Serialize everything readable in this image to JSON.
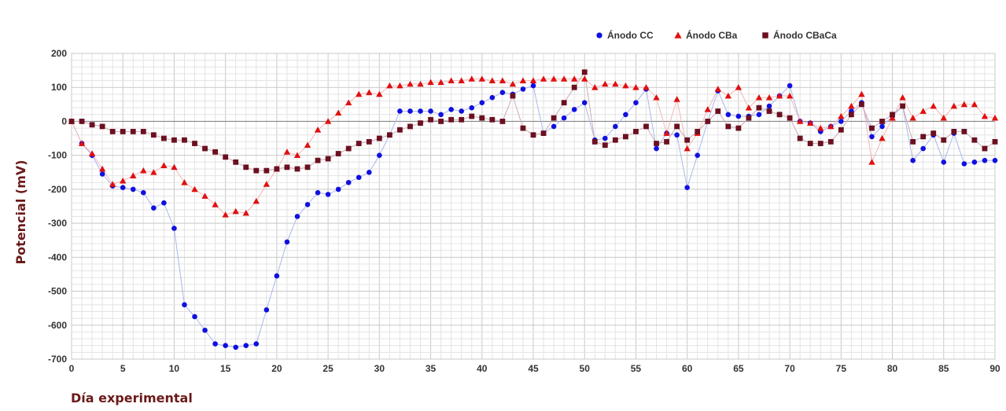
{
  "chart_data": {
    "type": "line",
    "xlabel": "Día experimental",
    "ylabel": "Potencial (mV)",
    "xlim": [
      0,
      90
    ],
    "ylim": [
      -700,
      200
    ],
    "x_ticks": [
      0,
      5,
      10,
      15,
      20,
      25,
      30,
      35,
      40,
      45,
      50,
      55,
      60,
      65,
      70,
      75,
      80,
      85,
      90
    ],
    "y_ticks": [
      200,
      100,
      0,
      -100,
      -200,
      -300,
      -400,
      -500,
      -600,
      -700
    ],
    "x_minor_step": 1,
    "y_minor_step": 20,
    "grid": true,
    "legend_position": "top-right",
    "series": [
      {
        "name": "Ánodo CC",
        "color": "#1010e0",
        "marker": "circle",
        "line_color": "#a9b6ee",
        "points": [
          [
            0,
            0
          ],
          [
            1,
            -65
          ],
          [
            2,
            -100
          ],
          [
            3,
            -155
          ],
          [
            4,
            -190
          ],
          [
            5,
            -195
          ],
          [
            6,
            -200
          ],
          [
            7,
            -210
          ],
          [
            8,
            -255
          ],
          [
            9,
            -240
          ],
          [
            10,
            -315
          ],
          [
            11,
            -540
          ],
          [
            12,
            -575
          ],
          [
            13,
            -615
          ],
          [
            14,
            -655
          ],
          [
            15,
            -660
          ],
          [
            16,
            -665
          ],
          [
            17,
            -660
          ],
          [
            18,
            -655
          ],
          [
            19,
            -555
          ],
          [
            20,
            -455
          ],
          [
            21,
            -355
          ],
          [
            22,
            -280
          ],
          [
            23,
            -245
          ],
          [
            24,
            -210
          ],
          [
            25,
            -215
          ],
          [
            26,
            -200
          ],
          [
            27,
            -180
          ],
          [
            28,
            -165
          ],
          [
            29,
            -150
          ],
          [
            30,
            -100
          ],
          [
            31,
            -40
          ],
          [
            32,
            30
          ],
          [
            33,
            30
          ],
          [
            34,
            30
          ],
          [
            35,
            30
          ],
          [
            36,
            20
          ],
          [
            37,
            35
          ],
          [
            38,
            30
          ],
          [
            39,
            40
          ],
          [
            40,
            55
          ],
          [
            41,
            70
          ],
          [
            42,
            85
          ],
          [
            43,
            80
          ],
          [
            44,
            95
          ],
          [
            45,
            105
          ],
          [
            46,
            -35
          ],
          [
            47,
            -15
          ],
          [
            48,
            10
          ],
          [
            49,
            35
          ],
          [
            50,
            55
          ],
          [
            51,
            -55
          ],
          [
            52,
            -50
          ],
          [
            53,
            -15
          ],
          [
            54,
            20
          ],
          [
            55,
            55
          ],
          [
            56,
            95
          ],
          [
            57,
            -80
          ],
          [
            58,
            -35
          ],
          [
            59,
            -40
          ],
          [
            60,
            -195
          ],
          [
            61,
            -100
          ],
          [
            62,
            0
          ],
          [
            63,
            90
          ],
          [
            64,
            20
          ],
          [
            65,
            15
          ],
          [
            66,
            15
          ],
          [
            67,
            20
          ],
          [
            68,
            45
          ],
          [
            69,
            75
          ],
          [
            70,
            105
          ],
          [
            71,
            0
          ],
          [
            72,
            -5
          ],
          [
            73,
            -30
          ],
          [
            74,
            -15
          ],
          [
            75,
            0
          ],
          [
            76,
            30
          ],
          [
            77,
            55
          ],
          [
            78,
            -45
          ],
          [
            79,
            -15
          ],
          [
            80,
            15
          ],
          [
            81,
            45
          ],
          [
            82,
            -115
          ],
          [
            83,
            -80
          ],
          [
            84,
            -40
          ],
          [
            85,
            -120
          ],
          [
            86,
            -35
          ],
          [
            87,
            -125
          ],
          [
            88,
            -120
          ],
          [
            89,
            -115
          ],
          [
            90,
            -115
          ]
        ]
      },
      {
        "name": "Ánodo CBa",
        "color": "#e01010",
        "marker": "triangle",
        "line_color": "#f2b5b5",
        "points": [
          [
            0,
            0
          ],
          [
            1,
            -65
          ],
          [
            2,
            -95
          ],
          [
            3,
            -140
          ],
          [
            4,
            -185
          ],
          [
            5,
            -175
          ],
          [
            6,
            -160
          ],
          [
            7,
            -145
          ],
          [
            8,
            -150
          ],
          [
            9,
            -130
          ],
          [
            10,
            -135
          ],
          [
            11,
            -180
          ],
          [
            12,
            -200
          ],
          [
            13,
            -220
          ],
          [
            14,
            -245
          ],
          [
            15,
            -275
          ],
          [
            16,
            -265
          ],
          [
            17,
            -270
          ],
          [
            18,
            -235
          ],
          [
            19,
            -185
          ],
          [
            20,
            -140
          ],
          [
            21,
            -90
          ],
          [
            22,
            -100
          ],
          [
            23,
            -70
          ],
          [
            24,
            -25
          ],
          [
            25,
            0
          ],
          [
            26,
            25
          ],
          [
            27,
            55
          ],
          [
            28,
            80
          ],
          [
            29,
            85
          ],
          [
            30,
            80
          ],
          [
            31,
            105
          ],
          [
            32,
            105
          ],
          [
            33,
            110
          ],
          [
            34,
            110
          ],
          [
            35,
            115
          ],
          [
            36,
            115
          ],
          [
            37,
            120
          ],
          [
            38,
            120
          ],
          [
            39,
            125
          ],
          [
            40,
            125
          ],
          [
            41,
            120
          ],
          [
            42,
            120
          ],
          [
            43,
            110
          ],
          [
            44,
            120
          ],
          [
            45,
            120
          ],
          [
            46,
            125
          ],
          [
            47,
            125
          ],
          [
            48,
            125
          ],
          [
            49,
            125
          ],
          [
            50,
            125
          ],
          [
            51,
            100
          ],
          [
            52,
            110
          ],
          [
            53,
            110
          ],
          [
            54,
            105
          ],
          [
            55,
            100
          ],
          [
            56,
            100
          ],
          [
            57,
            70
          ],
          [
            58,
            -35
          ],
          [
            59,
            65
          ],
          [
            60,
            -80
          ],
          [
            61,
            -35
          ],
          [
            62,
            35
          ],
          [
            63,
            95
          ],
          [
            64,
            75
          ],
          [
            65,
            100
          ],
          [
            66,
            40
          ],
          [
            67,
            70
          ],
          [
            68,
            70
          ],
          [
            69,
            75
          ],
          [
            70,
            75
          ],
          [
            71,
            0
          ],
          [
            72,
            -5
          ],
          [
            73,
            -20
          ],
          [
            74,
            -15
          ],
          [
            75,
            15
          ],
          [
            76,
            45
          ],
          [
            77,
            80
          ],
          [
            78,
            -120
          ],
          [
            79,
            -50
          ],
          [
            80,
            10
          ],
          [
            81,
            70
          ],
          [
            82,
            10
          ],
          [
            83,
            30
          ],
          [
            84,
            45
          ],
          [
            85,
            10
          ],
          [
            86,
            45
          ],
          [
            87,
            50
          ],
          [
            88,
            50
          ],
          [
            89,
            15
          ],
          [
            90,
            10
          ]
        ]
      },
      {
        "name": "Ánodo CBaCa",
        "color": "#6b1020",
        "marker": "square",
        "line_color": "#c9aab3",
        "points": [
          [
            0,
            0
          ],
          [
            1,
            0
          ],
          [
            2,
            -10
          ],
          [
            3,
            -15
          ],
          [
            4,
            -30
          ],
          [
            5,
            -30
          ],
          [
            6,
            -30
          ],
          [
            7,
            -30
          ],
          [
            8,
            -40
          ],
          [
            9,
            -50
          ],
          [
            10,
            -55
          ],
          [
            11,
            -55
          ],
          [
            12,
            -65
          ],
          [
            13,
            -80
          ],
          [
            14,
            -90
          ],
          [
            15,
            -105
          ],
          [
            16,
            -120
          ],
          [
            17,
            -135
          ],
          [
            18,
            -145
          ],
          [
            19,
            -145
          ],
          [
            20,
            -140
          ],
          [
            21,
            -135
          ],
          [
            22,
            -140
          ],
          [
            23,
            -135
          ],
          [
            24,
            -115
          ],
          [
            25,
            -110
          ],
          [
            26,
            -95
          ],
          [
            27,
            -80
          ],
          [
            28,
            -65
          ],
          [
            29,
            -60
          ],
          [
            30,
            -50
          ],
          [
            31,
            -40
          ],
          [
            32,
            -25
          ],
          [
            33,
            -15
          ],
          [
            34,
            -5
          ],
          [
            35,
            5
          ],
          [
            36,
            0
          ],
          [
            37,
            5
          ],
          [
            38,
            5
          ],
          [
            39,
            15
          ],
          [
            40,
            10
          ],
          [
            41,
            5
          ],
          [
            42,
            0
          ],
          [
            43,
            75
          ],
          [
            44,
            -20
          ],
          [
            45,
            -40
          ],
          [
            46,
            -35
          ],
          [
            47,
            10
          ],
          [
            48,
            55
          ],
          [
            49,
            100
          ],
          [
            50,
            145
          ],
          [
            51,
            -60
          ],
          [
            52,
            -70
          ],
          [
            53,
            -55
          ],
          [
            54,
            -45
          ],
          [
            55,
            -30
          ],
          [
            56,
            -15
          ],
          [
            57,
            -65
          ],
          [
            58,
            -60
          ],
          [
            59,
            -15
          ],
          [
            60,
            -55
          ],
          [
            61,
            -30
          ],
          [
            62,
            0
          ],
          [
            63,
            30
          ],
          [
            64,
            -15
          ],
          [
            65,
            -20
          ],
          [
            66,
            10
          ],
          [
            67,
            40
          ],
          [
            68,
            30
          ],
          [
            69,
            20
          ],
          [
            70,
            10
          ],
          [
            71,
            -50
          ],
          [
            72,
            -65
          ],
          [
            73,
            -65
          ],
          [
            74,
            -60
          ],
          [
            75,
            -25
          ],
          [
            76,
            20
          ],
          [
            77,
            50
          ],
          [
            78,
            -20
          ],
          [
            79,
            0
          ],
          [
            80,
            20
          ],
          [
            81,
            45
          ],
          [
            82,
            -60
          ],
          [
            83,
            -45
          ],
          [
            84,
            -35
          ],
          [
            85,
            -55
          ],
          [
            86,
            -30
          ],
          [
            87,
            -30
          ],
          [
            88,
            -55
          ],
          [
            89,
            -80
          ],
          [
            90,
            -60
          ]
        ]
      }
    ]
  }
}
